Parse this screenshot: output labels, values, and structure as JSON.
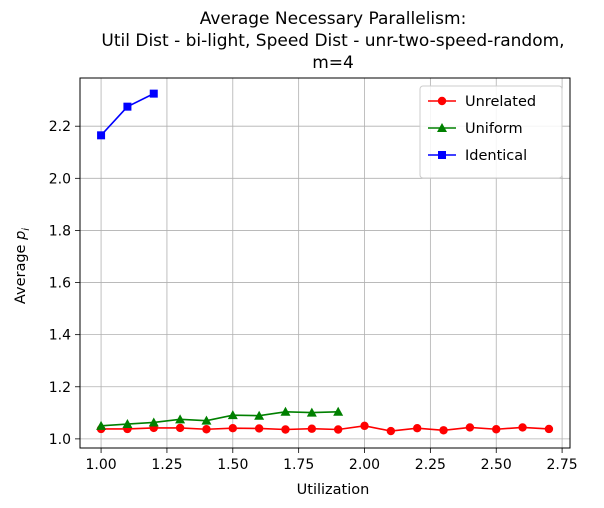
{
  "chart_data": {
    "type": "line",
    "title_lines": [
      "Average Necessary Parallelism:",
      "Util Dist - bi-light, Speed Dist - unr-two-speed-random,",
      "m=4"
    ],
    "xlabel": "Utilization",
    "ylabel_main": "Average ",
    "ylabel_var": "p",
    "ylabel_sub": "i",
    "xlim": [
      0.92,
      2.78
    ],
    "ylim": [
      0.965,
      2.385
    ],
    "xticks": [
      1.0,
      1.25,
      1.5,
      1.75,
      2.0,
      2.25,
      2.5,
      2.75
    ],
    "xtick_labels": [
      "1.00",
      "1.25",
      "1.50",
      "1.75",
      "2.00",
      "2.25",
      "2.50",
      "2.75"
    ],
    "yticks": [
      1.0,
      1.2,
      1.4,
      1.6,
      1.8,
      2.0,
      2.2
    ],
    "ytick_labels": [
      "1.0",
      "1.2",
      "1.4",
      "1.6",
      "1.8",
      "2.0",
      "2.2"
    ],
    "grid": true,
    "legend_position": "top-right",
    "series": [
      {
        "name": "Unrelated",
        "color": "#ff0000",
        "marker": "circle",
        "x": [
          1.0,
          1.1,
          1.2,
          1.3,
          1.4,
          1.5,
          1.6,
          1.7,
          1.8,
          1.9,
          2.0,
          2.1,
          2.2,
          2.3,
          2.4,
          2.5,
          2.6,
          2.7
        ],
        "y": [
          1.038,
          1.038,
          1.042,
          1.042,
          1.037,
          1.041,
          1.04,
          1.036,
          1.039,
          1.036,
          1.05,
          1.03,
          1.041,
          1.033,
          1.044,
          1.037,
          1.044,
          1.038
        ]
      },
      {
        "name": "Uniform",
        "color": "#008000",
        "marker": "triangle",
        "x": [
          1.0,
          1.1,
          1.2,
          1.3,
          1.4,
          1.5,
          1.6,
          1.7,
          1.8,
          1.9
        ],
        "y": [
          1.05,
          1.057,
          1.063,
          1.075,
          1.07,
          1.091,
          1.089,
          1.104,
          1.101,
          1.104
        ]
      },
      {
        "name": "Identical",
        "color": "#0000ff",
        "marker": "square",
        "x": [
          1.0,
          1.1,
          1.2
        ],
        "y": [
          2.165,
          2.275,
          2.325
        ]
      }
    ]
  }
}
